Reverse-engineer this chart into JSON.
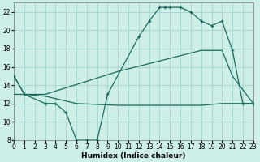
{
  "xlabel": "Humidex (Indice chaleur)",
  "xlim": [
    0,
    23
  ],
  "ylim": [
    8,
    23
  ],
  "yticks": [
    8,
    10,
    12,
    14,
    16,
    18,
    20,
    22
  ],
  "xticks": [
    0,
    1,
    2,
    3,
    4,
    5,
    6,
    7,
    8,
    9,
    10,
    11,
    12,
    13,
    14,
    15,
    16,
    17,
    18,
    19,
    20,
    21,
    22,
    23
  ],
  "bg_color": "#ceeee8",
  "line_color": "#1a6b5e",
  "grid_color": "#a8d8d2",
  "line1_x": [
    0,
    1,
    3,
    4,
    5,
    6,
    7,
    8,
    9,
    12,
    13,
    14,
    14.5,
    15,
    16,
    17,
    18,
    19,
    20,
    21,
    22,
    23
  ],
  "line1_y": [
    15,
    13,
    12,
    12,
    11,
    8,
    8,
    8,
    13,
    19.3,
    21.0,
    22.5,
    22.5,
    22.5,
    22.5,
    22.0,
    21.0,
    20.5,
    21.0,
    17.8,
    12,
    12
  ],
  "line2_x": [
    0,
    1,
    3,
    10,
    18,
    19,
    20,
    21,
    22,
    23
  ],
  "line2_y": [
    15,
    13,
    13,
    15.5,
    17.8,
    17.8,
    17.8,
    15,
    13.5,
    12
  ],
  "line3_x": [
    0,
    1,
    3,
    6,
    10,
    16,
    18,
    20,
    22,
    23
  ],
  "line3_y": [
    13,
    13,
    12.8,
    12,
    11.8,
    11.8,
    11.8,
    12.0,
    12.0,
    12.0
  ]
}
